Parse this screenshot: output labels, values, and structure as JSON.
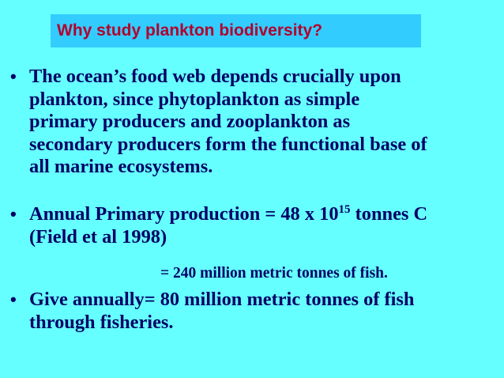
{
  "slide": {
    "title": "Why study plankton biodiversity?",
    "bullets": [
      {
        "symbol": "•",
        "lines": [
          "The ocean’s food web depends crucially upon",
          "plankton, since phytoplankton as simple",
          "primary producers and zooplankton as",
          "secondary producers form the functional base of",
          "all marine ecosystems."
        ]
      },
      {
        "symbol": "•",
        "line1_before": "Annual Primary production = 48 x 10",
        "line1_sup": "15",
        "line1_after": " tonnes C",
        "line2": "(Field et al 1998)"
      },
      {
        "symbol": "•",
        "lines": [
          "Give annually= 80 million metric tonnes of fish",
          "through fisheries."
        ]
      }
    ],
    "equivalence_line": "= 240 million metric tonnes of fish."
  },
  "colors": {
    "background": "#66ffff",
    "title_background": "#33ccff",
    "title_text": "#b2002d",
    "body_text": "#000066"
  }
}
